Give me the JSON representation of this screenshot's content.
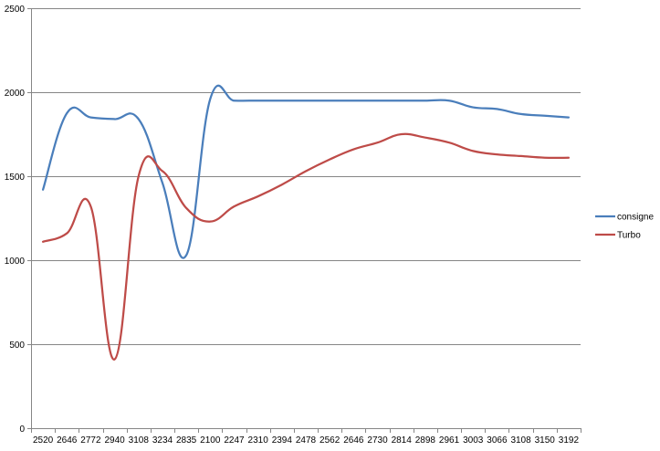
{
  "chart_data": {
    "type": "line",
    "categories": [
      "2520",
      "2646",
      "2772",
      "2940",
      "3108",
      "3234",
      "2835",
      "2100",
      "2247",
      "2310",
      "2394",
      "2478",
      "2562",
      "2646",
      "2730",
      "2814",
      "2898",
      "2961",
      "3003",
      "3066",
      "3108",
      "3150",
      "3192"
    ],
    "series": [
      {
        "name": "consigne",
        "color": "#4a7ebb",
        "values": [
          1420,
          1875,
          1850,
          1840,
          1840,
          1460,
          1030,
          1960,
          1950,
          1950,
          1950,
          1950,
          1950,
          1950,
          1950,
          1950,
          1950,
          1950,
          1910,
          1900,
          1870,
          1860,
          1850
        ]
      },
      {
        "name": "Turbo",
        "color": "#be4b48",
        "values": [
          1110,
          1160,
          1320,
          410,
          1500,
          1530,
          1310,
          1230,
          1320,
          1380,
          1450,
          1530,
          1600,
          1660,
          1700,
          1750,
          1730,
          1700,
          1650,
          1630,
          1620,
          1610,
          1610
        ]
      }
    ],
    "yticks": [
      0,
      500,
      1000,
      1500,
      2000,
      2500
    ],
    "ylim": [
      0,
      2500
    ],
    "grid": true,
    "legend_position": "right",
    "gridline_color": "#868686"
  }
}
